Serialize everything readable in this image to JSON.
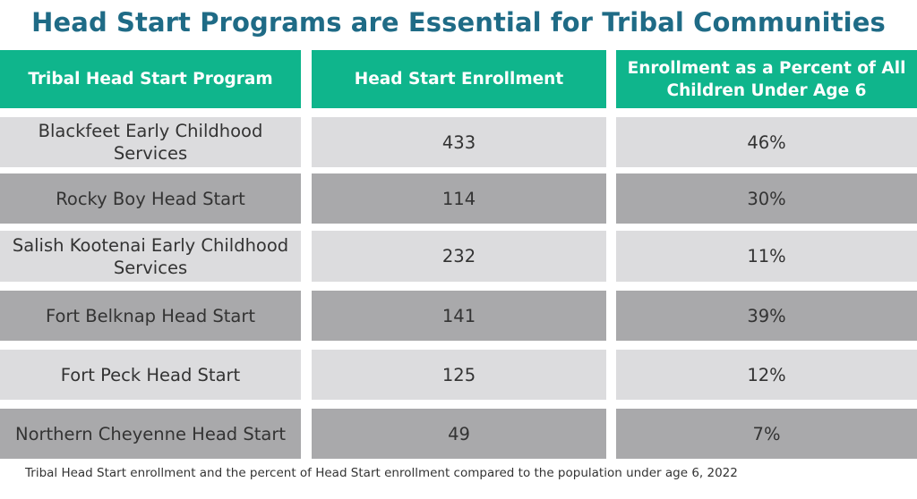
{
  "title": "Head Start Programs are Essential for Tribal Communities",
  "caption": "Tribal Head Start enrollment and the percent of Head Start enrollment compared to the population under age 6, 2022",
  "colors": {
    "title": "#1f6b86",
    "header_bg": "#0fb58c",
    "row_light": "#dcdcde",
    "row_dark": "#a9a9ab"
  },
  "chart_data": {
    "type": "table",
    "columns": [
      "Tribal Head Start Program",
      "Head Start Enrollment",
      "Enrollment as a Percent of All Children Under Age 6"
    ],
    "rows": [
      {
        "program": "Blackfeet Early Childhood Services",
        "enrollment": "433",
        "percent": "46%"
      },
      {
        "program": "Rocky Boy Head Start",
        "enrollment": "114",
        "percent": "30%"
      },
      {
        "program": "Salish Kootenai Early Childhood Services",
        "enrollment": "232",
        "percent": "11%"
      },
      {
        "program": "Fort Belknap Head Start",
        "enrollment": "141",
        "percent": "39%"
      },
      {
        "program": "Fort Peck Head Start",
        "enrollment": "125",
        "percent": "12%"
      },
      {
        "program": "Northern Cheyenne Head Start",
        "enrollment": "49",
        "percent": "7%"
      }
    ]
  }
}
